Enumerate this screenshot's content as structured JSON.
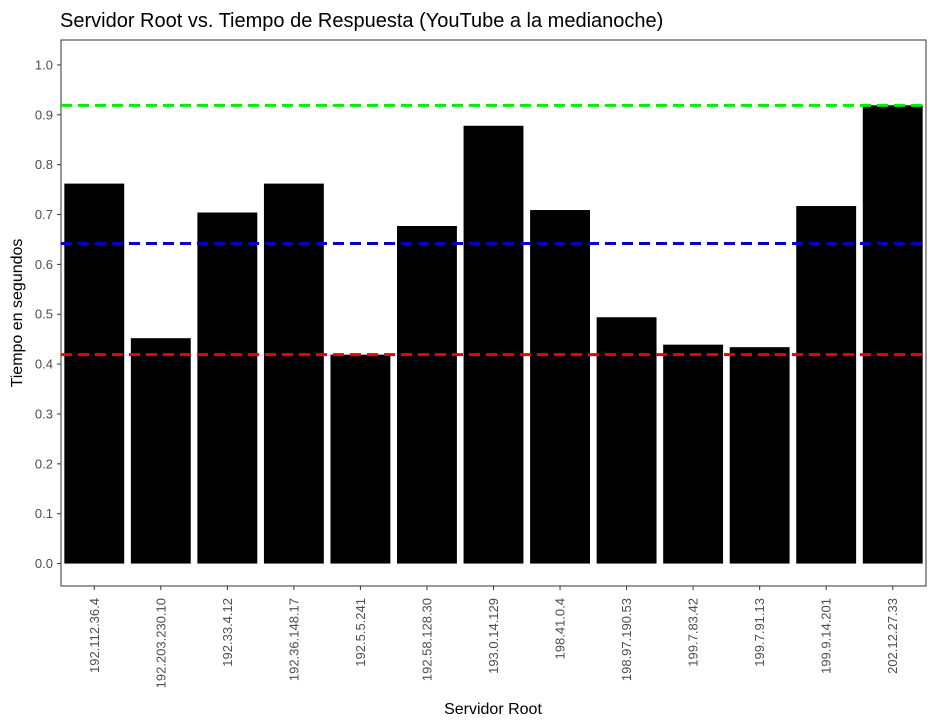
{
  "chart_data": {
    "type": "bar",
    "title": "Servidor Root vs. Tiempo de Respuesta (YouTube a la medianoche)",
    "xlabel": "Servidor Root",
    "ylabel": "Tiempo en segundos",
    "categories": [
      "192.112.36.4",
      "192.203.230.10",
      "192.33.4.12",
      "192.36.148.17",
      "192.5.5.241",
      "192.58.128.30",
      "193.0.14.129",
      "198.41.0.4",
      "198.97.190.53",
      "199.7.83.42",
      "199.7.91.13",
      "199.9.14.201",
      "202.12.27.33"
    ],
    "values": [
      0.762,
      0.452,
      0.704,
      0.762,
      0.419,
      0.677,
      0.878,
      0.709,
      0.494,
      0.439,
      0.434,
      0.717,
      0.919
    ],
    "ylim": [
      -0.045,
      1.05
    ],
    "yticks": [
      0.0,
      0.1,
      0.2,
      0.3,
      0.4,
      0.5,
      0.6,
      0.7,
      0.8,
      0.9,
      1.0
    ],
    "ytick_labels": [
      "0.0",
      "0.1",
      "0.2",
      "0.3",
      "0.4",
      "0.5",
      "0.6",
      "0.7",
      "0.8",
      "0.9",
      "1.0"
    ],
    "bar_color": "#000000",
    "grid": false,
    "reference_lines": [
      {
        "value": 0.919,
        "color": "#00ee00",
        "style": "dashed"
      },
      {
        "value": 0.642,
        "color": "#0000cc",
        "style": "dashed"
      },
      {
        "value": 0.419,
        "color": "#ee0000",
        "style": "dashed"
      }
    ]
  }
}
